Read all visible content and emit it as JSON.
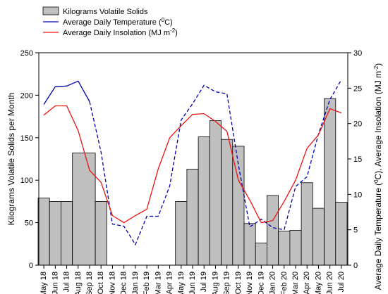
{
  "chart_data": {
    "type": "bar",
    "categories": [
      "May 18",
      "Jun 18",
      "Jul 18",
      "Aug 18",
      "Sep 18",
      "Oct 18",
      "Nov 18",
      "Dec 18",
      "Jan 19",
      "Feb 19",
      "Mar 19",
      "Apr 19",
      "May 19",
      "Jun 19",
      "Jul 19",
      "Aug 19",
      "Sep 19",
      "Oct 19",
      "Nov 19",
      "Dec 19",
      "Jan 20",
      "Feb 20",
      "Mar 20",
      "Apr 20",
      "May 20",
      "Jun 20",
      "Jul 20"
    ],
    "x_tick_labels": [
      "May 18",
      "Jun 18",
      "Jul 18",
      "Aug 18",
      "Sep 18",
      "Oct 18",
      "Nov 18",
      "Dec 18",
      "Jan 19",
      "Feb 19",
      "Mar 19",
      "Apr 19",
      "May 19",
      "Jun 19",
      "Jul 19",
      "Aug 19",
      "Sep 19",
      "Oct 19",
      "Nov 19",
      "Dec 19",
      "Jan 20",
      "Feb 20",
      "Mar 20",
      "Apr 20",
      "May 20",
      "Jun 20",
      "Jul 20"
    ],
    "bars": {
      "name": "Kilograms Volatile Solids",
      "color": "#c0c0c0",
      "x": [
        0,
        1,
        2,
        3.5,
        5,
        12,
        13,
        14,
        15,
        16,
        17,
        18,
        19,
        20,
        21,
        22,
        23,
        24,
        25,
        26
      ],
      "widths": [
        1,
        1,
        1,
        2,
        1,
        1,
        1,
        1,
        1,
        1,
        1,
        1,
        1,
        1,
        1,
        1,
        1,
        1,
        1,
        1
      ],
      "values": [
        79,
        75,
        75,
        132,
        75,
        75,
        113,
        151,
        170,
        148,
        140,
        49,
        26,
        82,
        40,
        41,
        97,
        67,
        196,
        74
      ]
    },
    "series": [
      {
        "name": "Average Daily Temperature (°C)",
        "color": "#0000aa",
        "dashed_from_index": 4,
        "x": [
          0,
          1,
          2,
          3,
          4,
          5,
          6,
          7,
          8,
          9,
          10,
          11,
          12,
          13,
          14,
          15,
          16,
          17,
          18,
          19,
          20,
          21,
          22,
          23,
          24,
          25,
          26
        ],
        "values": [
          22.7,
          25.2,
          25.3,
          26.0,
          23.1,
          16.0,
          5.8,
          5.5,
          2.9,
          6.9,
          6.9,
          11.2,
          20.5,
          22.8,
          25.4,
          24.5,
          24.2,
          14.2,
          5.4,
          6.5,
          5.3,
          5.0,
          11.1,
          12.5,
          18.5,
          23.4,
          26.2
        ],
        "axis": "right"
      },
      {
        "name": "Average Daily Insolation (MJ m⁻²)",
        "color": "#ee1111",
        "x": [
          0,
          1,
          2,
          3,
          4,
          5,
          6,
          7,
          8,
          9,
          10,
          11,
          12,
          13,
          14,
          15,
          16,
          17,
          18,
          19,
          20,
          21,
          22,
          23,
          24,
          25,
          26
        ],
        "values": [
          21.2,
          22.5,
          22.5,
          19.0,
          13.4,
          11.7,
          7.0,
          6.0,
          7.0,
          7.9,
          13.6,
          18.0,
          19.7,
          21.3,
          21.4,
          20.3,
          18.9,
          12.0,
          9.2,
          6.0,
          6.3,
          9.0,
          12.0,
          16.5,
          18.4,
          22.1,
          21.5
        ],
        "axis": "right"
      }
    ],
    "ylabel": "Kilograms Volatile Solids per Month",
    "ylim": [
      0,
      250
    ],
    "yticks": [
      0,
      50,
      100,
      150,
      200,
      250
    ],
    "y2label_parts": [
      "Average Daily Temperature (",
      "0",
      "C), Average Insolation (MJ m",
      "-2",
      ")"
    ],
    "y2lim": [
      0,
      30
    ],
    "y2ticks": [
      0,
      5,
      10,
      15,
      20,
      25,
      30
    ],
    "legend": {
      "placement": "top-left",
      "entries": [
        {
          "type": "bar",
          "label": "Kilograms Volatile Solids"
        },
        {
          "type": "line",
          "color": "#0000aa",
          "label_parts": [
            "Average Daily Temperature (",
            "0",
            "C)"
          ]
        },
        {
          "type": "line",
          "color": "#ee1111",
          "label_parts": [
            "Average Daily Insolation (MJ m",
            "-2",
            ")"
          ]
        }
      ]
    },
    "grid": false
  }
}
